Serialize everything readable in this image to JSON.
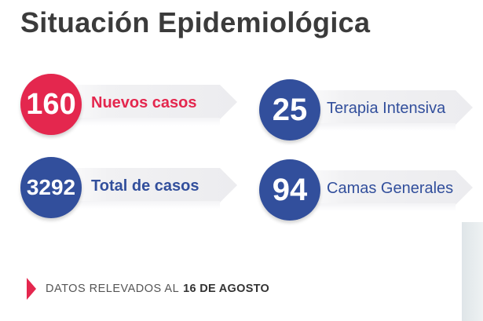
{
  "title": "Situación Epidemiológica",
  "colors": {
    "accent_red": "#e4274e",
    "accent_blue": "#324f9c",
    "title_gray": "#3b3b3b"
  },
  "stats": [
    {
      "value": "160",
      "label": "Nuevos casos",
      "color": "#e4274e"
    },
    {
      "value": "25",
      "label": "Terapia Intensiva",
      "color": "#324f9c"
    },
    {
      "value": "3292",
      "label": "Total de casos",
      "color": "#324f9c"
    },
    {
      "value": "94",
      "label": "Camas Generales",
      "color": "#324f9c"
    }
  ],
  "note": {
    "prefix": "DATOS RELEVADOS AL",
    "date": "16 DE AGOSTO",
    "icon": "triangle-right-icon"
  }
}
